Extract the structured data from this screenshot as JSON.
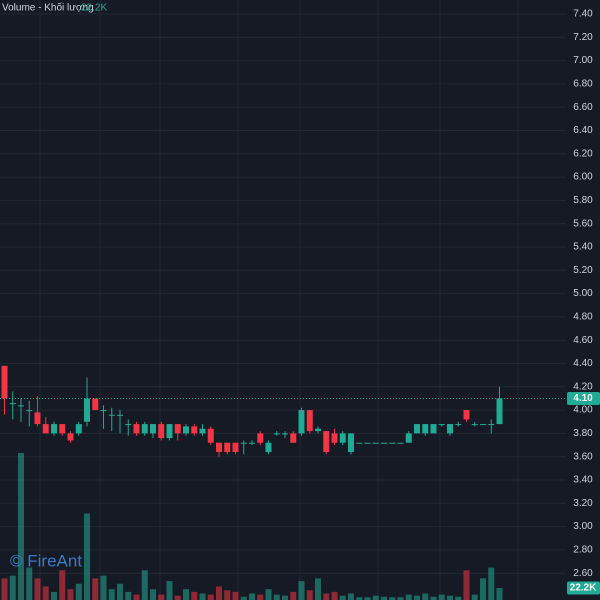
{
  "chart_data": {
    "type": "candlestick",
    "legend": {
      "name": "Volume - Khối lượng",
      "value": 22200,
      "label": "22.2K"
    },
    "watermark": "© FireAnt",
    "up_color": "#22ab94",
    "down_color": "#f23645",
    "open": [
      4.38,
      4.06,
      4.04,
      4.0,
      3.98,
      3.88,
      3.8,
      3.88,
      3.8,
      3.8,
      3.9,
      4.1,
      4.0,
      3.96,
      3.96,
      3.88,
      3.88,
      3.8,
      3.8,
      3.88,
      3.76,
      3.88,
      3.8,
      3.86,
      3.8,
      3.84,
      3.72,
      3.72,
      3.72,
      3.72,
      3.72,
      3.8,
      3.64,
      3.8,
      3.8,
      3.8,
      3.8,
      4.0,
      3.82,
      3.82,
      3.8,
      3.72,
      3.64,
      3.72,
      3.72,
      3.72,
      3.72,
      3.72,
      3.72,
      3.72,
      3.8,
      3.8,
      3.8,
      3.88,
      3.8,
      3.88,
      4.0,
      3.88,
      3.88,
      3.88,
      3.88
    ],
    "high": [
      4.38,
      4.16,
      4.1,
      4.08,
      4.12,
      3.94,
      3.9,
      3.88,
      3.82,
      3.9,
      4.28,
      4.1,
      4.04,
      4.02,
      4.0,
      3.92,
      3.9,
      3.9,
      3.88,
      3.9,
      3.88,
      3.88,
      3.88,
      3.88,
      3.88,
      3.86,
      3.72,
      3.72,
      3.72,
      3.74,
      3.74,
      3.82,
      3.74,
      3.82,
      3.82,
      3.82,
      4.02,
      4.0,
      3.86,
      3.82,
      3.84,
      3.82,
      3.8,
      3.72,
      3.72,
      3.72,
      3.72,
      3.72,
      3.72,
      3.82,
      3.88,
      3.88,
      3.88,
      3.88,
      3.88,
      3.9,
      4.0,
      3.9,
      3.88,
      3.92,
      4.2
    ],
    "low": [
      3.96,
      3.92,
      3.9,
      3.86,
      3.86,
      3.8,
      3.78,
      3.78,
      3.72,
      3.78,
      3.86,
      4.0,
      3.84,
      3.82,
      3.8,
      3.78,
      3.78,
      3.78,
      3.76,
      3.74,
      3.74,
      3.74,
      3.78,
      3.78,
      3.78,
      3.7,
      3.6,
      3.62,
      3.62,
      3.62,
      3.7,
      3.7,
      3.62,
      3.78,
      3.76,
      3.72,
      3.78,
      3.8,
      3.8,
      3.62,
      3.7,
      3.7,
      3.62,
      3.72,
      3.72,
      3.72,
      3.72,
      3.72,
      3.72,
      3.72,
      3.8,
      3.78,
      3.8,
      3.86,
      3.78,
      3.86,
      3.9,
      3.86,
      3.88,
      3.8,
      3.88
    ],
    "close": [
      4.1,
      4.06,
      4.04,
      4.0,
      3.88,
      3.8,
      3.88,
      3.8,
      3.74,
      3.88,
      4.1,
      4.0,
      4.0,
      3.96,
      3.96,
      3.88,
      3.8,
      3.88,
      3.88,
      3.76,
      3.88,
      3.8,
      3.86,
      3.8,
      3.84,
      3.72,
      3.64,
      3.64,
      3.64,
      3.72,
      3.72,
      3.72,
      3.72,
      3.8,
      3.8,
      3.72,
      4.0,
      3.82,
      3.84,
      3.64,
      3.72,
      3.8,
      3.8,
      3.72,
      3.72,
      3.72,
      3.72,
      3.72,
      3.72,
      3.8,
      3.88,
      3.88,
      3.88,
      3.88,
      3.88,
      3.88,
      3.92,
      3.88,
      3.88,
      3.88,
      4.1
    ],
    "volume": [
      40000,
      45000,
      272000,
      60000,
      40000,
      25000,
      15000,
      55000,
      20000,
      30000,
      160000,
      40000,
      45000,
      20000,
      30000,
      15000,
      10000,
      55000,
      20000,
      10000,
      35000,
      8000,
      20000,
      15000,
      12000,
      10000,
      25000,
      18000,
      15000,
      6000,
      12000,
      10000,
      20000,
      10000,
      8000,
      15000,
      35000,
      18000,
      40000,
      12000,
      15000,
      8000,
      12000,
      5000,
      5000,
      8000,
      6000,
      5000,
      5000,
      10000,
      8000,
      12000,
      6000,
      10000,
      8000,
      6000,
      55000,
      10000,
      40000,
      60000,
      22200
    ],
    "vlim": [
      0,
      1110000
    ],
    "last_price": {
      "value": 4.1,
      "label": "4.10"
    },
    "last_volume": {
      "value": 22200,
      "label": "22.2K"
    },
    "ylim": [
      2.37,
      7.52
    ],
    "yticks": [
      {
        "value": 7.4,
        "label": "7.40"
      },
      {
        "value": 7.2,
        "label": "7.20"
      },
      {
        "value": 7.0,
        "label": "7.00"
      },
      {
        "value": 6.8,
        "label": "6.80"
      },
      {
        "value": 6.6,
        "label": "6.60"
      },
      {
        "value": 6.4,
        "label": "6.40"
      },
      {
        "value": 6.2,
        "label": "6.20"
      },
      {
        "value": 6.0,
        "label": "6.00"
      },
      {
        "value": 5.8,
        "label": "5.80"
      },
      {
        "value": 5.6,
        "label": "5.60"
      },
      {
        "value": 5.4,
        "label": "5.40"
      },
      {
        "value": 5.2,
        "label": "5.20"
      },
      {
        "value": 5.0,
        "label": "5.00"
      },
      {
        "value": 4.8,
        "label": "4.80"
      },
      {
        "value": 4.6,
        "label": "4.60"
      },
      {
        "value": 4.4,
        "label": "4.40"
      },
      {
        "value": 4.2,
        "label": "4.20"
      },
      {
        "value": 4.0,
        "label": "4.00"
      },
      {
        "value": 3.8,
        "label": "3.80"
      },
      {
        "value": 3.6,
        "label": "3.60"
      },
      {
        "value": 3.4,
        "label": "3.40"
      },
      {
        "value": 3.2,
        "label": "3.20"
      },
      {
        "value": 3.0,
        "label": "3.00"
      },
      {
        "value": 2.8,
        "label": "2.80"
      },
      {
        "value": 2.6,
        "label": "2.60"
      }
    ],
    "grid": true
  }
}
